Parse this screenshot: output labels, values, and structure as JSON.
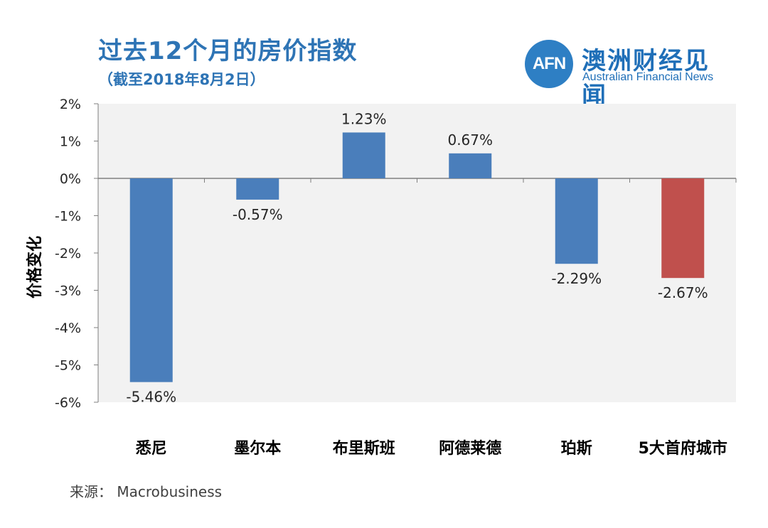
{
  "title": "过去12个月的房价指数",
  "subtitle": "（截至2018年8月2日）",
  "logo": {
    "mark": "AFN",
    "name_cn": "澳洲财经见闻",
    "name_en": "Australian Financial News",
    "color": "#1f6fb8"
  },
  "source": {
    "label": "来源：",
    "value": "Macrobusiness"
  },
  "chart_data": {
    "type": "bar",
    "title": "过去12个月的房价指数",
    "subtitle": "（截至2018年8月2日）",
    "ylabel": "价格变化",
    "xlabel": "",
    "ylim": [
      -6,
      2
    ],
    "yticks": [
      2,
      1,
      0,
      -1,
      -2,
      -3,
      -4,
      -5,
      -6
    ],
    "ytick_labels": [
      "2%",
      "1%",
      "0%",
      "-1%",
      "-2%",
      "-3%",
      "-4%",
      "-5%",
      "-6%"
    ],
    "categories": [
      "悉尼",
      "墨尔本",
      "布里斯班",
      "阿德莱德",
      "珀斯",
      "5大首府城市"
    ],
    "values": [
      -5.46,
      -0.57,
      1.23,
      0.67,
      -2.29,
      -2.67
    ],
    "value_labels": [
      "-5.46%",
      "-0.57%",
      "1.23%",
      "0.67%",
      "-2.29%",
      "-2.67%"
    ],
    "bar_colors": [
      "#4a7ebb",
      "#4a7ebb",
      "#4a7ebb",
      "#4a7ebb",
      "#4a7ebb",
      "#c0504d"
    ],
    "plot_background": "#f2f2f2",
    "grid": false,
    "legend": "none"
  }
}
